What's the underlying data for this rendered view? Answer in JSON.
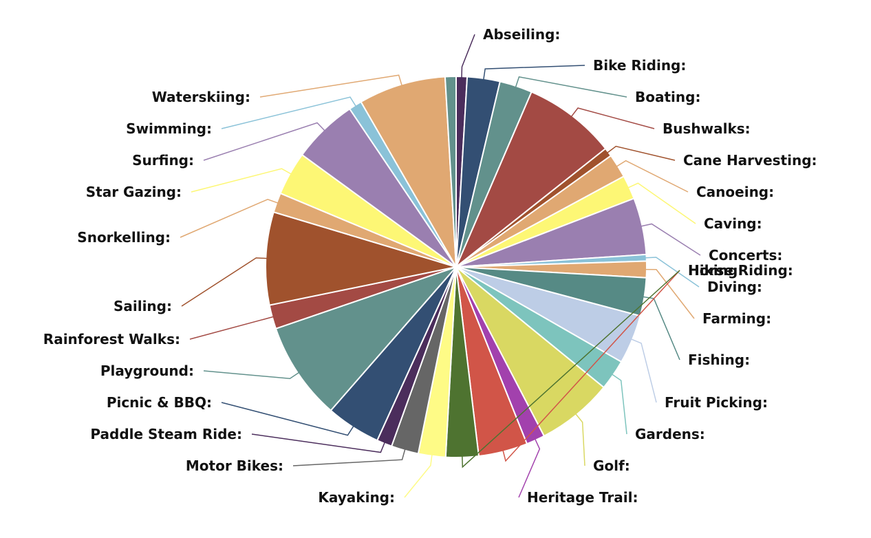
{
  "chart_data": {
    "type": "pie",
    "slices": [
      {
        "label": "Abseiling:",
        "value": 1.0,
        "color": "#4b2d5c"
      },
      {
        "label": "Bike Riding:",
        "value": 3.0,
        "color": "#334f73"
      },
      {
        "label": "Boating:",
        "value": 3.0,
        "color": "#62918c"
      },
      {
        "label": "Bushwalks:",
        "value": 8.5,
        "color": "#a34a44"
      },
      {
        "label": "Cane Harvesting:",
        "value": 0.8,
        "color": "#a0522d"
      },
      {
        "label": "Canoeing:",
        "value": 2.2,
        "color": "#e0a872"
      },
      {
        "label": "Caving:",
        "value": 2.2,
        "color": "#fdf775"
      },
      {
        "label": "Concerts:",
        "value": 5.2,
        "color": "#9a7fb0"
      },
      {
        "label": "Diving:",
        "value": 0.6,
        "color": "#8ac2d8"
      },
      {
        "label": "Farming:",
        "value": 1.5,
        "color": "#e0a872"
      },
      {
        "label": "Fishing:",
        "value": 3.5,
        "color": "#568a85"
      },
      {
        "label": "Fruit Picking:",
        "value": 4.5,
        "color": "#bdcde6"
      },
      {
        "label": "Gardens:",
        "value": 2.8,
        "color": "#7dc4bd"
      },
      {
        "label": "Golf:",
        "value": 7.0,
        "color": "#d9d862"
      },
      {
        "label": "Heritage Trail:",
        "value": 1.7,
        "color": "#a241ad"
      },
      {
        "label": "Hiking:",
        "value": 4.5,
        "color": "#d15548"
      },
      {
        "label": "Horse Riding:",
        "value": 3.0,
        "color": "#4e7330"
      },
      {
        "label": "Kayaking:",
        "value": 2.5,
        "color": "#fefb86"
      },
      {
        "label": "Motor Bikes:",
        "value": 2.5,
        "color": "#666666"
      },
      {
        "label": "Paddle Steam Ride:",
        "value": 1.4,
        "color": "#4b2d5c"
      },
      {
        "label": "Picnic & BBQ:",
        "value": 5.0,
        "color": "#334f73"
      },
      {
        "label": "Playground:",
        "value": 9.0,
        "color": "#62918c"
      },
      {
        "label": "Rainforest Walks:",
        "value": 2.2,
        "color": "#a34a44"
      },
      {
        "label": "Sailing:",
        "value": 8.5,
        "color": "#a0522d"
      },
      {
        "label": "Snorkelling:",
        "value": 1.8,
        "color": "#e0a872"
      },
      {
        "label": "Star Gazing:",
        "value": 4.0,
        "color": "#fdf775"
      },
      {
        "label": "Surfing:",
        "value": 6.0,
        "color": "#9a7fb0"
      },
      {
        "label": "Swimming:",
        "value": 1.2,
        "color": "#8ac2d8"
      },
      {
        "label": "Waterskiing:",
        "value": 8.0,
        "color": "#e0a872"
      },
      {
        "label": "",
        "value": 1.0,
        "color": "#62918c"
      }
    ],
    "title": "",
    "legend": "none"
  }
}
